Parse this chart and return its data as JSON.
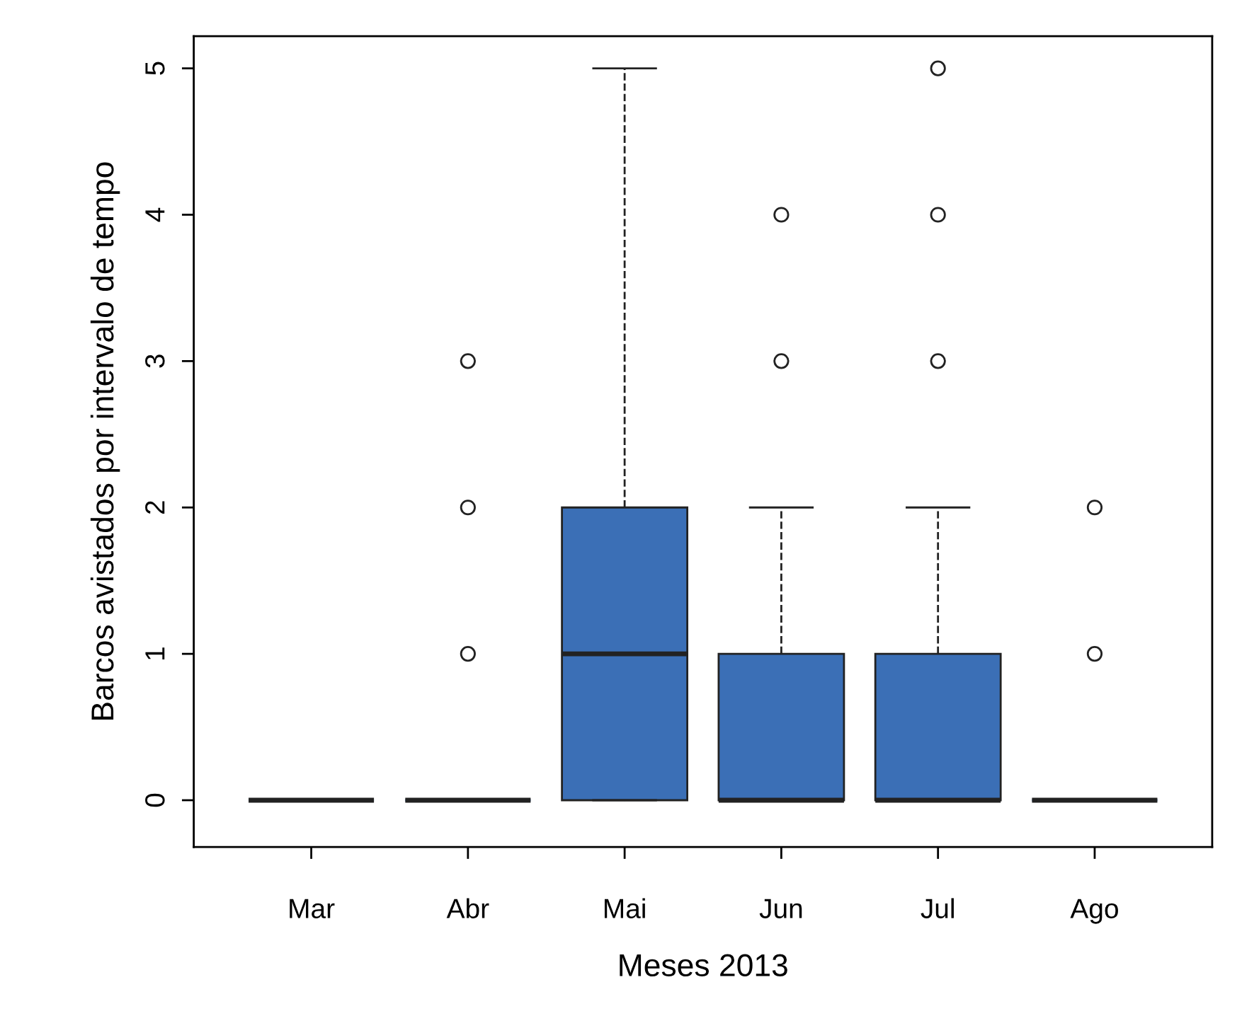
{
  "chart_data": {
    "type": "box",
    "xlabel": "Meses 2013",
    "ylabel": "Barcos avistados por intervalo de tempo",
    "categories": [
      "Mar",
      "Abr",
      "Mai",
      "Jun",
      "Jul",
      "Ago"
    ],
    "color": "#3b6fb6",
    "ylim": [
      -0.32,
      5.22
    ],
    "yticks": [
      0,
      1,
      2,
      3,
      4,
      5
    ],
    "grid": false,
    "line_style": "dashed",
    "marker": "circle",
    "boxes": [
      {
        "low": 0,
        "q1": 0,
        "median": 0,
        "q3": 0,
        "high": 0
      },
      {
        "low": 0,
        "q1": 0,
        "median": 0,
        "q3": 0,
        "high": 0,
        "outliers": [
          1,
          2,
          3
        ]
      },
      {
        "low": 0,
        "q1": 0,
        "median": 1,
        "q3": 2,
        "high": 5
      },
      {
        "low": 0,
        "q1": 0,
        "median": 0,
        "q3": 1,
        "high": 2,
        "outliers": [
          3,
          4
        ]
      },
      {
        "low": 0,
        "q1": 0,
        "median": 0,
        "q3": 1,
        "high": 2,
        "outliers": [
          3,
          4,
          5
        ]
      },
      {
        "low": 0,
        "q1": 0,
        "median": 0,
        "q3": 0,
        "high": 0,
        "outliers": [
          1,
          2
        ]
      }
    ]
  }
}
